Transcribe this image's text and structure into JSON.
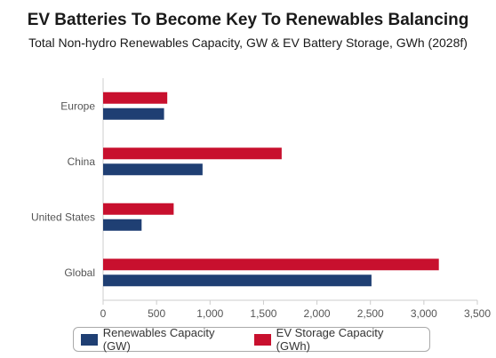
{
  "chart_data": {
    "type": "bar",
    "orientation": "horizontal",
    "title": "EV Batteries To Become Key To Renewables Balancing",
    "subtitle": "Total Non-hydro Renewables Capacity, GW & EV Battery Storage, GWh (2028f)",
    "categories": [
      "Europe",
      "China",
      "United States",
      "Global"
    ],
    "series": [
      {
        "name": "Renewables Capacity (GW)",
        "color": "#1f3f73",
        "values": [
          570,
          930,
          360,
          2510
        ]
      },
      {
        "name": "EV Storage Capacity (GWh)",
        "color": "#c8102e",
        "values": [
          600,
          1670,
          660,
          3140
        ]
      }
    ],
    "xlim": [
      0,
      3500
    ],
    "xticks": [
      0,
      500,
      1000,
      1500,
      2000,
      2500,
      3000,
      3500
    ],
    "xtick_labels": [
      "0",
      "500",
      "1,000",
      "1,500",
      "2,000",
      "2,500",
      "3,000",
      "3,500"
    ],
    "grid": false,
    "legend": "bottom"
  }
}
